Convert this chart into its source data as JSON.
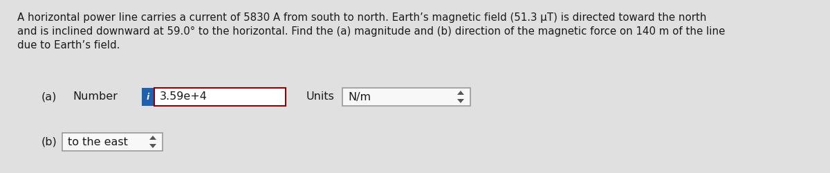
{
  "background_color": "#e0e0e0",
  "problem_text_line1": "A horizontal power line carries a current of 5830 A from south to north. Earth’s magnetic field (51.3 μT) is directed toward the north",
  "problem_text_line2": "and is inclined downward at 59.0° to the horizontal. Find the (a) magnitude and (b) direction of the magnetic force on 140 m of the line",
  "problem_text_line3": "due to Earth’s field.",
  "label_a": "(a)",
  "label_number": "Number",
  "value_a": "3.59e+4",
  "label_units": "Units",
  "value_units": "N/m",
  "label_b": "(b)",
  "value_b": "to the east",
  "text_fontsize": 10.8,
  "answer_fontsize": 11.5,
  "text_color": "#1a1a1a",
  "box_border_color": "#8b0000",
  "box_fill_color": "#ffffff",
  "blue_tab_color": "#2060b0",
  "units_box_border_color": "#999999",
  "units_box_fill_color": "#f8f8f8",
  "b_box_border_color": "#999999",
  "b_box_fill_color": "#f8f8f8"
}
